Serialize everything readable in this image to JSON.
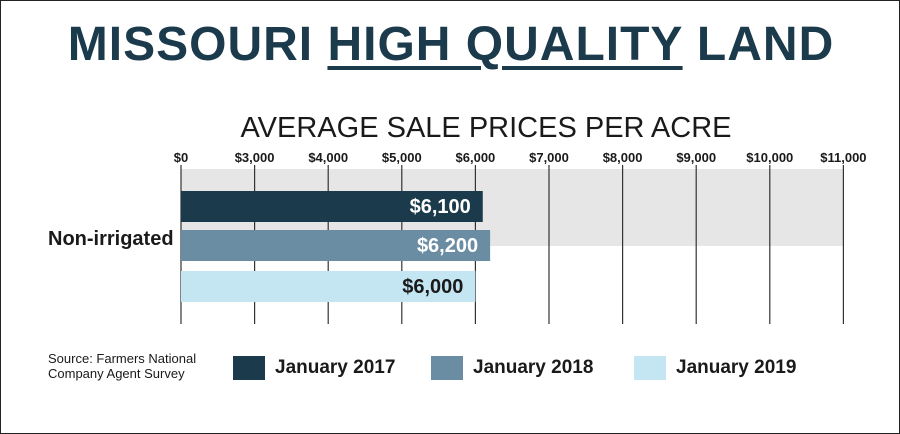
{
  "headline": {
    "part1": "MISSOURI ",
    "part2": "HIGH QUALITY",
    "part3": " LAND"
  },
  "source": {
    "line1": "Source: Farmers National",
    "line2": "Company Agent Survey"
  },
  "colors": {
    "headline": "#1b3a4b",
    "band": "#e6e6e6",
    "gridline": "#333333"
  },
  "chart_data": {
    "type": "bar",
    "orientation": "horizontal",
    "title": "AVERAGE SALE PRICES PER ACRE",
    "categories": [
      "Non-irrigated"
    ],
    "series": [
      {
        "name": "January 2017",
        "values": [
          6100
        ],
        "labels": [
          "$6,100"
        ],
        "color": "#1b3a4b"
      },
      {
        "name": "January 2018",
        "values": [
          6200
        ],
        "labels": [
          "$6,200"
        ],
        "color": "#6b8da3"
      },
      {
        "name": "January 2019",
        "values": [
          6000
        ],
        "labels": [
          "$6,000"
        ],
        "color": "#c4e6f2"
      }
    ],
    "ticks": [
      {
        "label": "$0",
        "value": 0
      },
      {
        "label": "$3,000",
        "value": 1000
      },
      {
        "label": "$4,000",
        "value": 2000
      },
      {
        "label": "$5,000",
        "value": 3000
      },
      {
        "label": "$6,000",
        "value": 4000
      },
      {
        "label": "$7,000",
        "value": 5000
      },
      {
        "label": "$8,000",
        "value": 6000
      },
      {
        "label": "$9,000",
        "value": 7000
      },
      {
        "label": "$10,000",
        "value": 8000
      },
      {
        "label": "$11,000",
        "value": 9000
      }
    ],
    "axis_note": "the $0 to $3,000 interval is drawn at the same width as the other $1,000 intervals",
    "xlim": [
      0,
      11000
    ],
    "grid": true,
    "legend_position": "bottom"
  }
}
